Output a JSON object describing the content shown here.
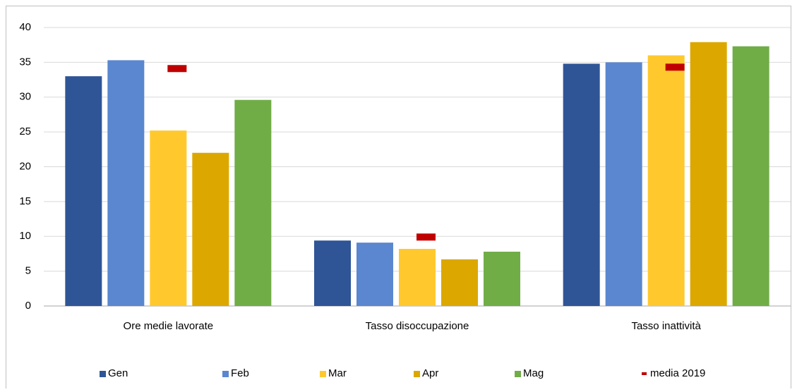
{
  "chart_data": {
    "type": "bar",
    "categories": [
      "Ore medie lavorate",
      "Tasso disoccupazione",
      "Tasso inattività"
    ],
    "series": [
      {
        "name": "Gen",
        "color": "#2f5597",
        "values": [
          33.0,
          9.4,
          34.8
        ]
      },
      {
        "name": "Feb",
        "color": "#5a87cf",
        "values": [
          35.3,
          9.1,
          35.0
        ]
      },
      {
        "name": "Mar",
        "color": "#ffc92e",
        "values": [
          25.2,
          8.2,
          36.0
        ]
      },
      {
        "name": "Apr",
        "color": "#dca800",
        "values": [
          22.0,
          6.7,
          37.9
        ]
      },
      {
        "name": "Mag",
        "color": "#70ad47",
        "values": [
          29.6,
          7.8,
          37.3
        ]
      },
      {
        "name": "media 2019",
        "color": "#c00000",
        "marker": "dash",
        "values": [
          34.1,
          9.9,
          34.3
        ]
      }
    ],
    "ylim": [
      0,
      40
    ],
    "yticks": [
      0,
      5,
      10,
      15,
      20,
      25,
      30,
      35,
      40
    ],
    "grid": true,
    "legend": "bottom"
  }
}
